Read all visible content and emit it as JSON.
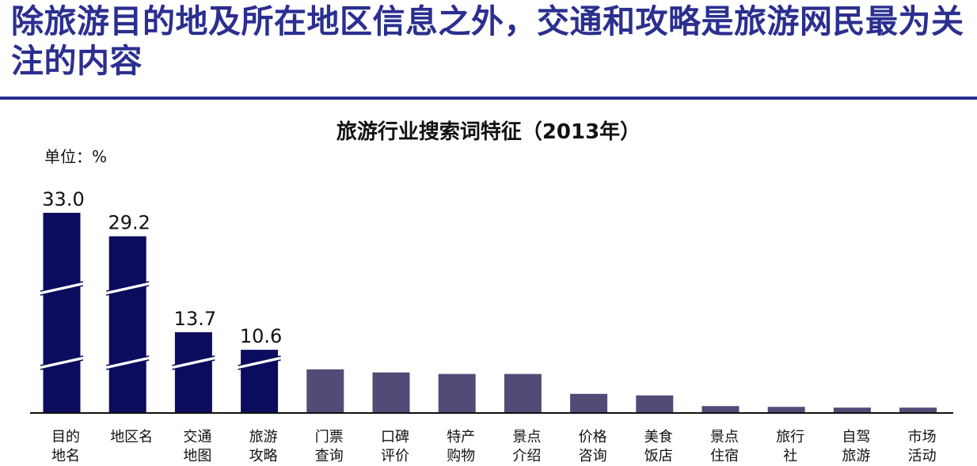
{
  "page": {
    "headline": "除旅游目的地及所在地区信息之外，交通和攻略是旅游网民最为关注的内容"
  },
  "chart_data": {
    "type": "bar",
    "title": "旅游行业搜索词特征（2013年）",
    "unit_label": "单位：%",
    "axis_broken": true,
    "colors": {
      "highlight": "#0c0c5e",
      "normal": "#514b78"
    },
    "bars": [
      {
        "label_lines": [
          "目的",
          "地名"
        ],
        "value": 33.0,
        "value_label": "33.0",
        "highlight": true
      },
      {
        "label_lines": [
          "地区名"
        ],
        "value": 29.2,
        "value_label": "29.2",
        "highlight": true
      },
      {
        "label_lines": [
          "交通",
          "地图"
        ],
        "value": 13.7,
        "value_label": "13.7",
        "highlight": true
      },
      {
        "label_lines": [
          "旅游",
          "攻略"
        ],
        "value": 10.6,
        "value_label": "10.6",
        "highlight": true
      },
      {
        "label_lines": [
          "门票",
          "查询"
        ],
        "value": 2.8,
        "value_label": "",
        "highlight": false
      },
      {
        "label_lines": [
          "口碑",
          "评价"
        ],
        "value": 2.6,
        "value_label": "",
        "highlight": false
      },
      {
        "label_lines": [
          "特产",
          "购物"
        ],
        "value": 2.5,
        "value_label": "",
        "highlight": false
      },
      {
        "label_lines": [
          "景点",
          "介绍"
        ],
        "value": 2.5,
        "value_label": "",
        "highlight": false
      },
      {
        "label_lines": [
          "价格",
          "咨询"
        ],
        "value": 1.2,
        "value_label": "",
        "highlight": false
      },
      {
        "label_lines": [
          "美食",
          "饭店"
        ],
        "value": 1.1,
        "value_label": "",
        "highlight": false
      },
      {
        "label_lines": [
          "景点",
          "住宿"
        ],
        "value": 0.4,
        "value_label": "",
        "highlight": false
      },
      {
        "label_lines": [
          "旅行",
          "社"
        ],
        "value": 0.35,
        "value_label": "",
        "highlight": false
      },
      {
        "label_lines": [
          "自驾",
          "旅游"
        ],
        "value": 0.3,
        "value_label": "",
        "highlight": false
      },
      {
        "label_lines": [
          "市场",
          "活动"
        ],
        "value": 0.3,
        "value_label": "",
        "highlight": false
      }
    ]
  }
}
